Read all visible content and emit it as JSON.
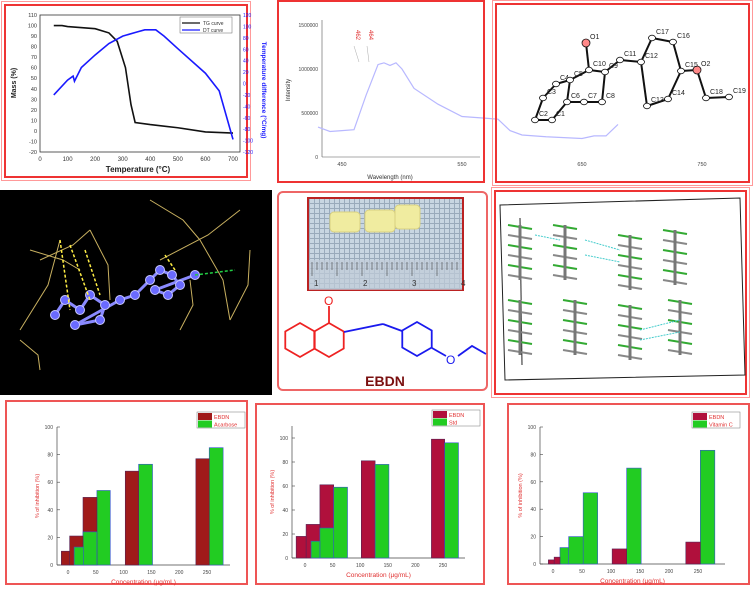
{
  "colors": {
    "frame": "#e63333",
    "tg": "#111111",
    "dt": "#1a1aff",
    "pl": "#b8b8ff",
    "ebdn_bar": "#a01a1a",
    "ebdn_bar_b": "#b0103c",
    "std_bar": "#22cc22",
    "label_red": "#e03030"
  },
  "chart_data": [
    {
      "type": "line",
      "xlabel": "Temperature (°C)",
      "ylabel": "Mass (%)",
      "y2label": "Temperature difference (°C/mg)",
      "xlim": [
        0,
        700
      ],
      "ylim": [
        -20,
        110
      ],
      "y2lim": [
        -120,
        120
      ],
      "xticks": [
        "0",
        "100",
        "200",
        "300",
        "400",
        "500",
        "600",
        "700"
      ],
      "yticks": [
        "-20",
        "-10",
        "0",
        "10",
        "20",
        "30",
        "40",
        "50",
        "60",
        "70",
        "80",
        "90",
        "100",
        "110"
      ],
      "y2ticks": [
        "-120",
        "-100",
        "-80",
        "-60",
        "-40",
        "-20",
        "0",
        "20",
        "40",
        "60",
        "80",
        "100",
        "120"
      ],
      "legend": "top-right",
      "series": [
        {
          "name": "TG curve",
          "axis": "left",
          "x": [
            50,
            80,
            100,
            200,
            250,
            280,
            310,
            330,
            345,
            400,
            500,
            600,
            700
          ],
          "y": [
            100,
            100,
            99,
            97,
            93,
            85,
            60,
            25,
            8,
            6,
            3,
            -1,
            -2
          ]
        },
        {
          "name": "DT curve",
          "axis": "right",
          "x": [
            50,
            100,
            120,
            125,
            150,
            200,
            250,
            300,
            350,
            380,
            420,
            450,
            500,
            600,
            650,
            700
          ],
          "y": [
            -20,
            6,
            13,
            4,
            28,
            50,
            70,
            83,
            90,
            94,
            94,
            83,
            61,
            18,
            -13,
            -98
          ]
        }
      ]
    },
    {
      "type": "line",
      "xlabel": "Wavelength (nm)",
      "ylabel": "Intensity",
      "xlim": [
        430,
        750
      ],
      "ylim": [
        0,
        1500000
      ],
      "xticks": [
        "450",
        "550",
        "650",
        "750"
      ],
      "yticks": [
        "0",
        "500000",
        "1000000",
        "1500000"
      ],
      "annotations": [
        "462",
        "464"
      ],
      "series": [
        {
          "x": [
            430,
            440,
            450,
            460,
            470,
            480,
            485,
            490,
            495,
            500,
            510,
            530,
            550,
            570,
            580,
            590,
            600,
            620,
            650,
            660,
            670,
            680
          ],
          "y": [
            340000,
            290000,
            300000,
            310000,
            700000,
            1050000,
            1070000,
            1040000,
            1070000,
            1000000,
            780000,
            600000,
            460000,
            440000,
            430000,
            300000,
            250000,
            230000,
            210000,
            240000,
            240000,
            370000
          ]
        }
      ]
    },
    {
      "type": "bar",
      "xlabel": "Concentration (µg/mL)",
      "ylabel": "% of inhibition (%)",
      "ylim": [
        0,
        100
      ],
      "xticks": [
        "0",
        "50",
        "100",
        "150",
        "200",
        "250"
      ],
      "yticks": [
        "0",
        "20",
        "40",
        "60",
        "80",
        "100"
      ],
      "legend": "top-right",
      "series": [
        {
          "name": "EBDN",
          "bars": [
            {
              "x": [
                -12,
                3
              ],
              "v": 10
            },
            {
              "x": [
                3,
                27
              ],
              "v": 21
            },
            {
              "x": [
                27,
                52
              ],
              "v": 49
            },
            {
              "x": [
                103,
                127
              ],
              "v": 68
            },
            {
              "x": [
                230,
                254
              ],
              "v": 77
            }
          ]
        },
        {
          "name": "Acarbose",
          "bars": [
            {
              "x": [
                11,
                28
              ],
              "v": 13
            },
            {
              "x": [
                27,
                52
              ],
              "v": 24
            },
            {
              "x": [
                52,
                76
              ],
              "v": 54
            },
            {
              "x": [
                127,
                152
              ],
              "v": 73
            },
            {
              "x": [
                254,
                279
              ],
              "v": 85
            }
          ]
        }
      ]
    },
    {
      "type": "bar",
      "xlabel": "Concentration (µg/mL)",
      "ylabel": "% of inhibition (%)",
      "ylim": [
        0,
        110
      ],
      "xticks": [
        "0",
        "50",
        "100",
        "150",
        "200",
        "250"
      ],
      "yticks": [
        "0",
        "20",
        "40",
        "60",
        "80",
        "100"
      ],
      "legend": "top-right",
      "series": [
        {
          "name": "EBDN",
          "bars": [
            {
              "x": [
                -16,
                2
              ],
              "v": 18
            },
            {
              "x": [
                2,
                27
              ],
              "v": 28
            },
            {
              "x": [
                27,
                52
              ],
              "v": 61
            },
            {
              "x": [
                102,
                127
              ],
              "v": 81
            },
            {
              "x": [
                229,
                253
              ],
              "v": 99
            }
          ]
        },
        {
          "name": "Std",
          "bars": [
            {
              "x": [
                11,
                27
              ],
              "v": 14
            },
            {
              "x": [
                27,
                52
              ],
              "v": 25
            },
            {
              "x": [
                52,
                77
              ],
              "v": 59
            },
            {
              "x": [
                127,
                152
              ],
              "v": 78
            },
            {
              "x": [
                253,
                278
              ],
              "v": 96
            }
          ]
        }
      ]
    },
    {
      "type": "bar",
      "xlabel": "Concentration (µg/mL)",
      "ylabel": "% of inhibition (%)",
      "ylim": [
        0,
        100
      ],
      "xticks": [
        "0",
        "50",
        "100",
        "150",
        "200",
        "250"
      ],
      "yticks": [
        "0",
        "20",
        "40",
        "60",
        "80",
        "100"
      ],
      "legend": "top-right",
      "series": [
        {
          "name": "EBDN",
          "bars": [
            {
              "x": [
                -8,
                2
              ],
              "v": 3
            },
            {
              "x": [
                2,
                12
              ],
              "v": 5
            },
            {
              "x": [
                102,
                127
              ],
              "v": 11
            },
            {
              "x": [
                229,
                254
              ],
              "v": 16
            }
          ]
        },
        {
          "name": "Vitamin C",
          "bars": [
            {
              "x": [
                12,
                27
              ],
              "v": 12
            },
            {
              "x": [
                27,
                52
              ],
              "v": 20
            },
            {
              "x": [
                52,
                77
              ],
              "v": 52
            },
            {
              "x": [
                127,
                152
              ],
              "v": 70
            },
            {
              "x": [
                254,
                279
              ],
              "v": 83
            }
          ]
        }
      ]
    }
  ],
  "structure": {
    "name": "EBDN",
    "oxygen_label": "O"
  },
  "ruler_marks": [
    "1",
    "2",
    "3",
    "4"
  ],
  "ortep_atoms": [
    "O1",
    "C10",
    "C11",
    "C17",
    "C16",
    "O2",
    "C4",
    "C5",
    "C9",
    "C12",
    "C15",
    "C18",
    "C3",
    "C6",
    "C7",
    "C8",
    "C13",
    "C14",
    "C19",
    "C2",
    "C1"
  ],
  "icons": {
    "photo": "crystal-photo",
    "docking": "molecular-docking-image",
    "packing": "crystal-packing-image"
  }
}
